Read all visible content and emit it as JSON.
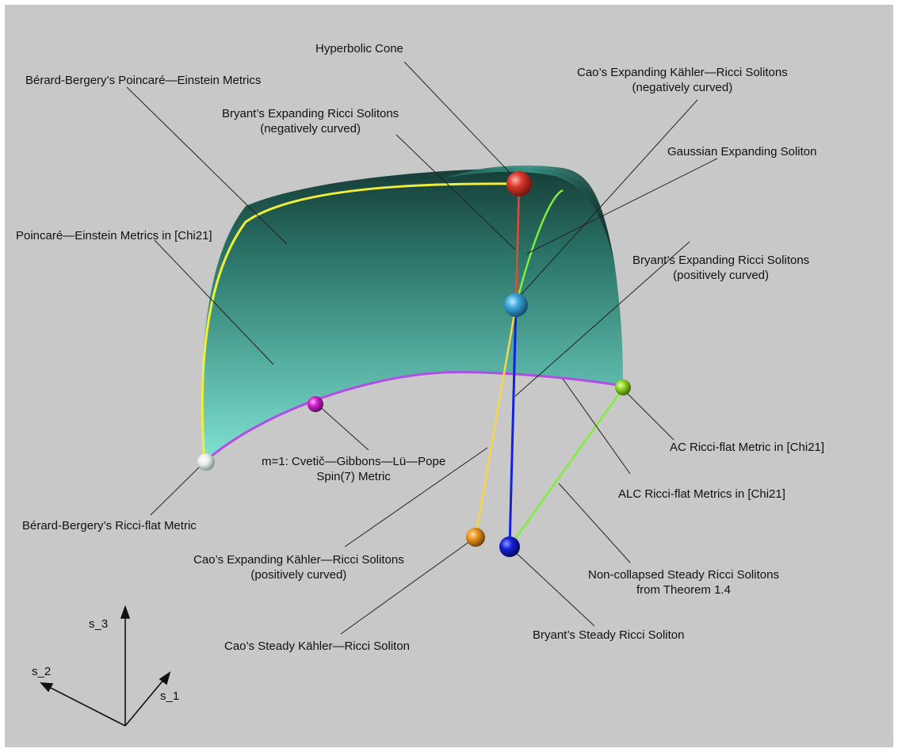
{
  "labels": {
    "hyperbolic_cone": "Hyperbolic Cone",
    "berard_bergery_pe": "Bérard-Bergery’s Poincaré—Einstein Metrics",
    "cao_expanding_neg_1": "Cao’s Expanding Kähler—Ricci Solitons",
    "cao_expanding_neg_2": "(negatively curved)",
    "bryant_expanding_neg_1": "Bryant’s Expanding Ricci Solitons",
    "bryant_expanding_neg_2": "(negatively curved)",
    "gaussian_expanding": "Gaussian Expanding Soliton",
    "pe_chi21": "Poincaré—Einstein Metrics in [Chi21]",
    "bryant_expanding_pos_1": "Bryant’s Expanding Ricci Solitons",
    "bryant_expanding_pos_2": "(positively curved)",
    "cglp_1": "m=1: Cvetič—Gibbons—Lü—Pope",
    "cglp_2": "Spin(7) Metric",
    "ac_ricci_flat": "AC Ricci-flat Metric in [Chi21]",
    "alc_ricci_flat": "ALC Ricci-flat Metrics in [Chi21]",
    "berard_bergery_rf": "Bérard-Bergery’s Ricci-flat Metric",
    "cao_expanding_pos_1": "Cao’s Expanding Kähler—Ricci Solitons",
    "cao_expanding_pos_2": "(positively curved)",
    "non_collapsed_1": "Non-collapsed Steady Ricci Solitons",
    "non_collapsed_2": "from Theorem 1.4",
    "cao_steady": "Cao’s Steady Kähler—Ricci Soliton",
    "bryant_steady": "Bryant’s Steady Ricci Soliton"
  },
  "axes": {
    "s1": "s_1",
    "s2": "s_2",
    "s3": "s_3"
  },
  "colors": {
    "background": "#c8c8c8",
    "surface_light": "#7fe3d2",
    "surface_dark": "#10322d",
    "yellow_edge": "#f0ee3a",
    "magenta_edge": "#b14ee6",
    "red_sphere": "#d8372c",
    "light_blue_sphere": "#3aa3d6",
    "blue_sphere": "#1220d8",
    "orange_sphere": "#e8921a",
    "green_sphere": "#8ed420",
    "magenta_sphere": "#d01fcf",
    "white_sphere": "#e4ece9",
    "green_curve": "#7ef03a",
    "orange_curve": "#f5d64a",
    "blue_curve": "#1422e0",
    "red_curve": "#e84b2e"
  }
}
